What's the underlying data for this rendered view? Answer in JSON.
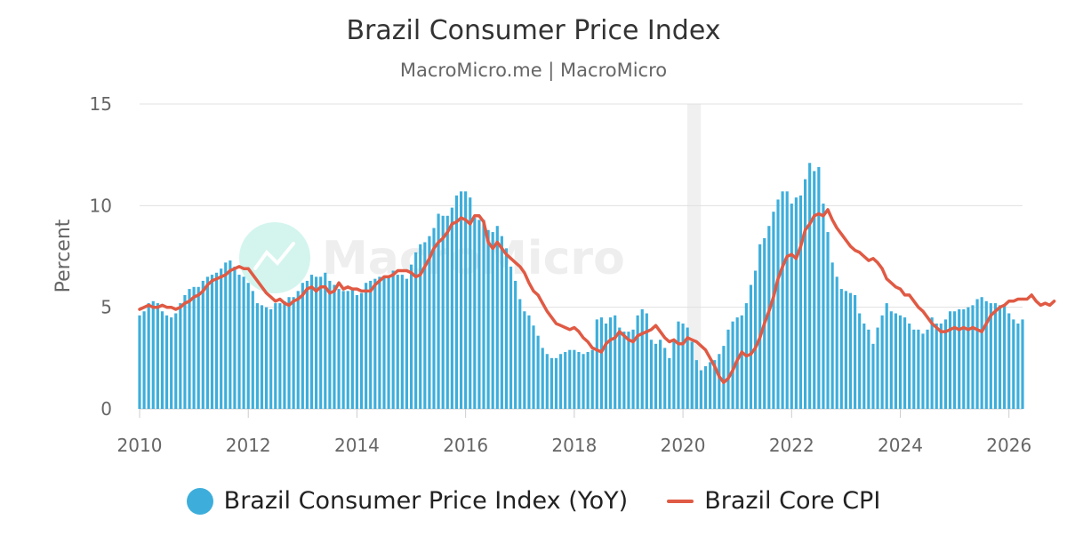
{
  "chart_data": {
    "type": "bar",
    "title": "Brazil Consumer Price Index",
    "subtitle": "MacroMicro.me | MacroMicro",
    "watermark": "MacroMicro",
    "ylabel": "Percent",
    "xlabel": "",
    "ylim": [
      0,
      15
    ],
    "yticks": [
      0,
      5,
      10,
      15
    ],
    "xlim": [
      2010,
      2026.25
    ],
    "xticks": [
      2010,
      2012,
      2014,
      2016,
      2018,
      2020,
      2022,
      2024,
      2026
    ],
    "grid": true,
    "legend_position": "bottom",
    "highlight_period": [
      2020.08,
      2020.33
    ],
    "colors": {
      "cpi": "#3daedb",
      "core": "#e05a44",
      "grid": "#e0e0e0",
      "highlight": "#f0f0f0",
      "watermark_circle": "#d3f5ee",
      "watermark_text": "#eeeeee"
    },
    "series": [
      {
        "name": "Brazil Consumer Price Index (YoY)",
        "type": "bar",
        "start": "2010-01",
        "frequency": "monthly",
        "values": [
          4.6,
          4.8,
          5.2,
          5.3,
          5.2,
          4.8,
          4.6,
          4.5,
          4.7,
          5.2,
          5.6,
          5.9,
          6.0,
          6.0,
          6.3,
          6.5,
          6.6,
          6.7,
          6.9,
          7.2,
          7.3,
          7.0,
          6.6,
          6.5,
          6.2,
          5.8,
          5.2,
          5.1,
          5.0,
          4.9,
          5.2,
          5.2,
          5.3,
          5.5,
          5.5,
          5.8,
          6.2,
          6.3,
          6.6,
          6.5,
          6.5,
          6.7,
          6.3,
          6.1,
          5.9,
          5.8,
          5.8,
          5.9,
          5.6,
          5.7,
          6.2,
          6.3,
          6.4,
          6.5,
          6.5,
          6.5,
          6.8,
          6.6,
          6.6,
          6.4,
          7.1,
          7.7,
          8.1,
          8.2,
          8.5,
          8.9,
          9.6,
          9.5,
          9.5,
          9.9,
          10.5,
          10.7,
          10.7,
          10.4,
          9.4,
          9.3,
          9.3,
          8.8,
          8.7,
          9.0,
          8.5,
          7.9,
          7.0,
          6.3,
          5.4,
          4.8,
          4.6,
          4.1,
          3.6,
          3.0,
          2.7,
          2.5,
          2.5,
          2.7,
          2.8,
          2.9,
          2.9,
          2.8,
          2.7,
          2.8,
          2.9,
          4.4,
          4.5,
          4.2,
          4.5,
          4.6,
          4.0,
          3.8,
          3.8,
          3.9,
          4.6,
          4.9,
          4.7,
          3.4,
          3.2,
          3.4,
          3.0,
          2.5,
          3.3,
          4.3,
          4.2,
          4.0,
          3.3,
          2.4,
          1.9,
          2.1,
          2.3,
          2.4,
          2.7,
          3.1,
          3.9,
          4.3,
          4.5,
          4.6,
          5.2,
          6.1,
          6.8,
          8.1,
          8.4,
          9.0,
          9.7,
          10.3,
          10.7,
          10.7,
          10.1,
          10.4,
          10.5,
          11.3,
          12.1,
          11.7,
          11.9,
          10.1,
          8.7,
          7.2,
          6.5,
          5.9,
          5.8,
          5.7,
          5.6,
          4.7,
          4.2,
          3.9,
          3.2,
          4.0,
          4.6,
          5.2,
          4.8,
          4.7,
          4.6,
          4.5,
          4.2,
          3.9,
          3.9,
          3.7,
          3.9,
          4.5,
          4.2,
          4.2,
          4.4,
          4.8,
          4.8,
          4.9,
          4.9,
          5.0,
          5.1,
          5.4,
          5.5,
          5.3,
          5.2,
          5.2,
          5.1,
          5.1,
          4.7,
          4.4,
          4.2,
          4.4
        ]
      },
      {
        "name": "Brazil Core CPI",
        "type": "line",
        "start": "2010-01",
        "frequency": "monthly",
        "values": [
          4.9,
          5.0,
          5.1,
          5.0,
          5.0,
          5.1,
          5.0,
          5.0,
          4.9,
          5.0,
          5.2,
          5.3,
          5.5,
          5.6,
          5.8,
          6.1,
          6.3,
          6.4,
          6.5,
          6.6,
          6.8,
          6.9,
          7.0,
          6.9,
          6.9,
          6.6,
          6.3,
          6.0,
          5.7,
          5.5,
          5.3,
          5.4,
          5.2,
          5.1,
          5.3,
          5.4,
          5.6,
          5.9,
          6.0,
          5.8,
          6.0,
          6.0,
          5.7,
          5.8,
          6.2,
          5.9,
          6.0,
          5.9,
          5.9,
          5.8,
          5.8,
          5.8,
          6.1,
          6.3,
          6.5,
          6.5,
          6.6,
          6.8,
          6.8,
          6.8,
          6.7,
          6.5,
          6.6,
          7.0,
          7.4,
          7.9,
          8.2,
          8.4,
          8.7,
          9.1,
          9.2,
          9.4,
          9.3,
          9.1,
          9.5,
          9.5,
          9.2,
          8.2,
          7.9,
          8.2,
          7.9,
          7.6,
          7.4,
          7.2,
          7.0,
          6.7,
          6.2,
          5.8,
          5.6,
          5.2,
          4.8,
          4.5,
          4.2,
          4.1,
          4.0,
          3.9,
          4.0,
          3.8,
          3.5,
          3.3,
          3.0,
          2.9,
          2.8,
          3.2,
          3.4,
          3.5,
          3.8,
          3.6,
          3.4,
          3.3,
          3.6,
          3.7,
          3.8,
          3.9,
          4.1,
          3.8,
          3.5,
          3.3,
          3.4,
          3.2,
          3.2,
          3.5,
          3.4,
          3.3,
          3.1,
          2.9,
          2.5,
          2.1,
          1.6,
          1.3,
          1.5,
          1.9,
          2.4,
          2.8,
          2.6,
          2.7,
          3.0,
          3.5,
          4.2,
          4.8,
          5.5,
          6.4,
          7.0,
          7.5,
          7.6,
          7.4,
          8.0,
          8.8,
          9.1,
          9.5,
          9.6,
          9.5,
          9.8,
          9.3,
          8.9,
          8.6,
          8.3,
          8.0,
          7.8,
          7.7,
          7.5,
          7.3,
          7.4,
          7.2,
          6.9,
          6.4,
          6.2,
          6.0,
          5.9,
          5.6,
          5.6,
          5.3,
          5.0,
          4.8,
          4.5,
          4.2,
          4.0,
          3.8,
          3.8,
          3.9,
          4.0,
          3.9,
          4.0,
          3.9,
          4.0,
          3.9,
          3.8,
          4.2,
          4.6,
          4.8,
          5.0,
          5.1,
          5.3,
          5.3,
          5.4,
          5.4,
          5.4,
          5.6,
          5.3,
          5.1,
          5.2,
          5.1,
          5.3
        ]
      }
    ]
  }
}
